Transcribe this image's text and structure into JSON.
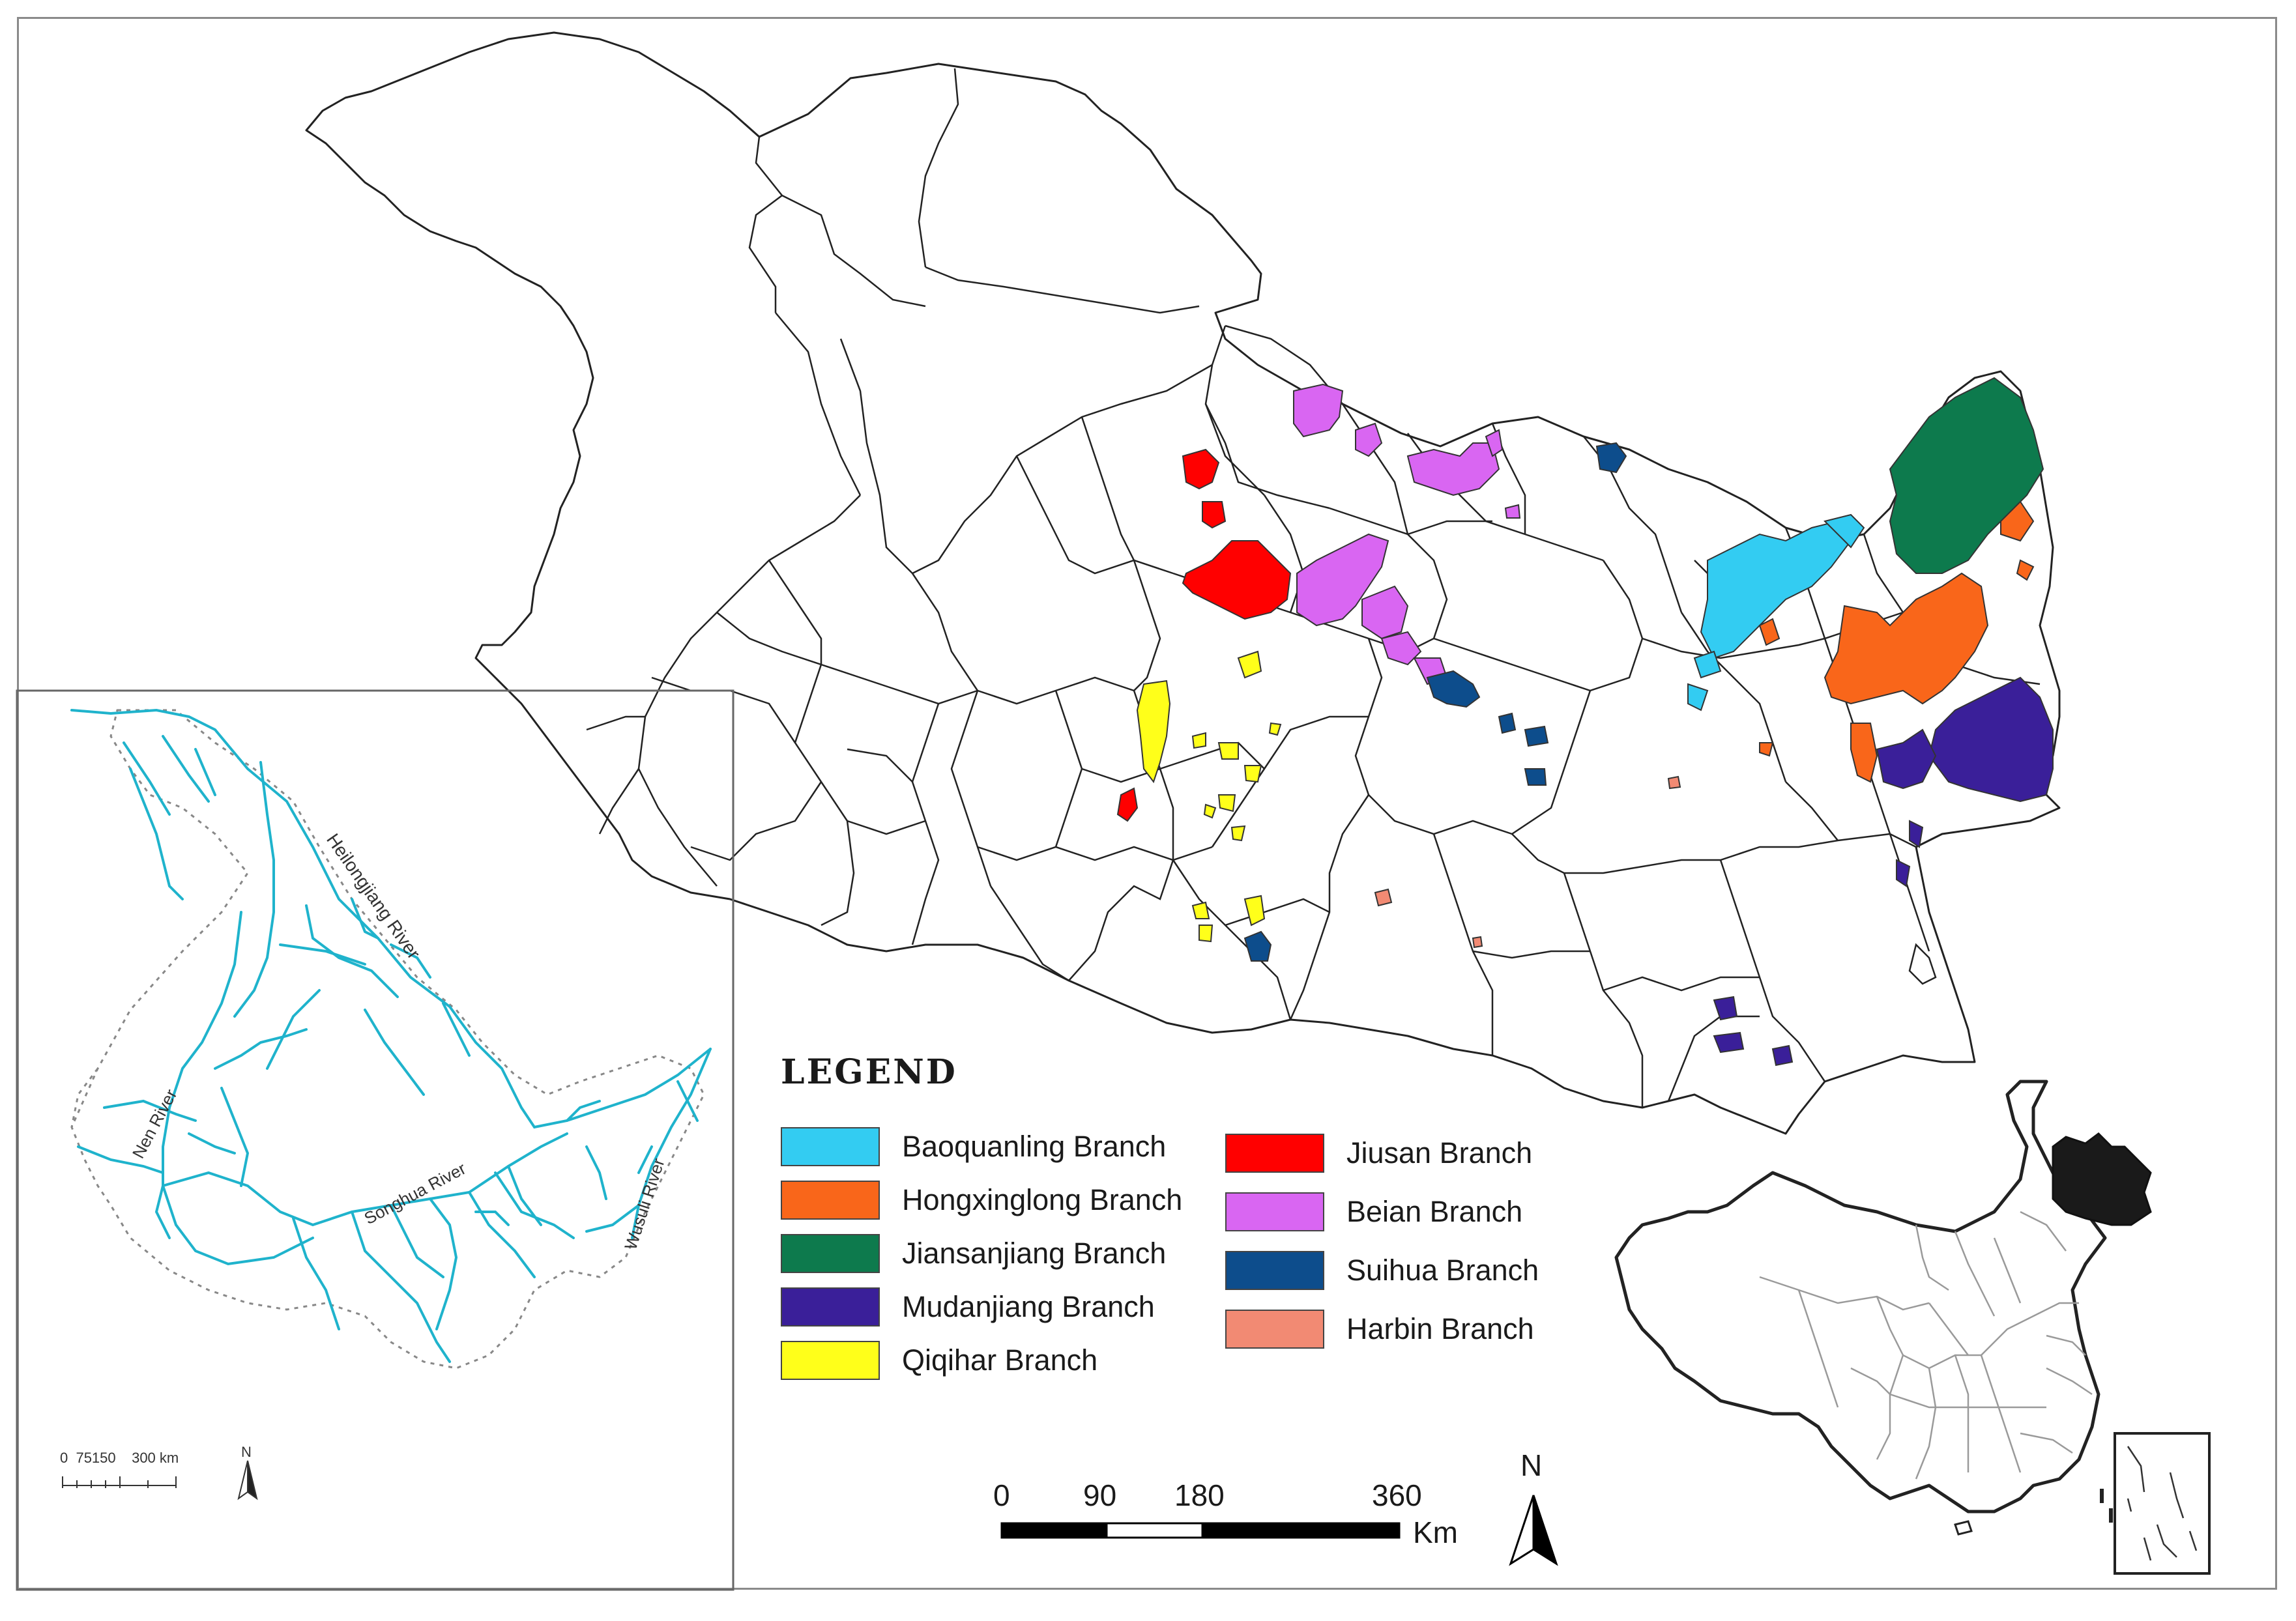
{
  "legend": {
    "title": "LEGEND",
    "items": [
      {
        "label": "Baoquanling Branch",
        "color": "#33ccf2"
      },
      {
        "label": "Hongxinglong Branch",
        "color": "#f9661a"
      },
      {
        "label": "Jiansanjiang Branch",
        "color": "#0d7a4d"
      },
      {
        "label": "Mudanjiang Branch",
        "color": "#3a1f99"
      },
      {
        "label": "Qiqihar Branch",
        "color": "#ffff1a"
      },
      {
        "label": "Jiusan Branch",
        "color": "#ff0000"
      },
      {
        "label": "Beian Branch",
        "color": "#d966f2"
      },
      {
        "label": "Suihua Branch",
        "color": "#0d4d8c"
      },
      {
        "label": "Harbin Branch",
        "color": "#f28a73"
      }
    ]
  },
  "scale_bar": {
    "ticks": [
      "0",
      "90",
      "180",
      "360"
    ],
    "unit": "Km"
  },
  "north_arrow": {
    "label": "N"
  },
  "rivers_inset": {
    "rivers": [
      "Heilongjiang River",
      "Nen River",
      "Songhua River",
      "Wusuli River"
    ],
    "scale_text": "0  75150    300 km",
    "north_label": "N",
    "river_color": "#1fb3cc"
  },
  "china_inset": {
    "highlight_color": "#1a1a1a"
  }
}
